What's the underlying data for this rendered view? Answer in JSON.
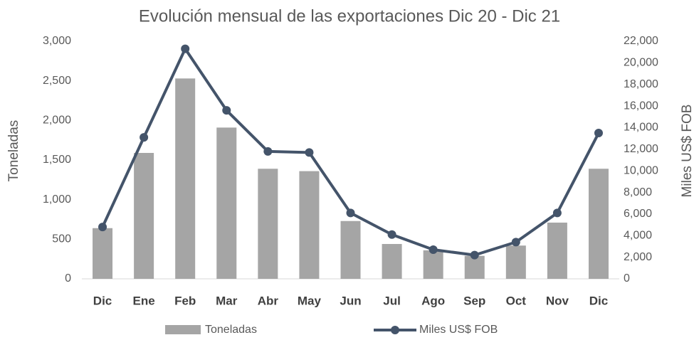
{
  "chart_data": {
    "type": "bar_line",
    "title": "Evolución mensual de las exportaciones Dic 20 - Dic 21",
    "y_label": "Toneladas",
    "y2_label": "Miles US$ FOB",
    "categories": [
      "Dic",
      "Ene",
      "Feb",
      "Mar",
      "Abr",
      "May",
      "Jun",
      "Jul",
      "Ago",
      "Sep",
      "Oct",
      "Nov",
      "Dic"
    ],
    "series": [
      {
        "name": "Toneladas",
        "type": "bar",
        "color": "#a5a5a5",
        "values": [
          640,
          1590,
          2530,
          1910,
          1390,
          1360,
          730,
          440,
          360,
          290,
          420,
          710,
          1390
        ]
      },
      {
        "name": "Miles US$ FOB",
        "type": "line",
        "axis": "y2",
        "color": "#44546a",
        "values": [
          4800,
          13100,
          21300,
          15600,
          11800,
          11700,
          6100,
          4100,
          2700,
          2200,
          3400,
          6100,
          13500
        ]
      }
    ],
    "ylim": [
      0,
      3000
    ],
    "yticks": [
      0,
      500,
      {
        "value": 1000,
        "label": "1,000"
      },
      {
        "value": 1500,
        "label": "1,500"
      },
      {
        "value": 2000,
        "label": "2,000"
      },
      {
        "value": 2500,
        "label": "2,500"
      },
      {
        "value": 3000,
        "label": "3,000"
      }
    ],
    "y2lim": [
      0,
      22000
    ],
    "y2ticks": [
      0,
      {
        "value": 2000,
        "label": "2,000"
      },
      {
        "value": 4000,
        "label": "4,000"
      },
      {
        "value": 6000,
        "label": "6,000"
      },
      {
        "value": 8000,
        "label": "8,000"
      },
      {
        "value": 10000,
        "label": "10,000"
      },
      {
        "value": 12000,
        "label": "12,000"
      },
      {
        "value": 14000,
        "label": "14,000"
      },
      {
        "value": 16000,
        "label": "16,000"
      },
      {
        "value": 18000,
        "label": "18,000"
      },
      {
        "value": 20000,
        "label": "20,000"
      },
      {
        "value": 22000,
        "label": "22,000"
      }
    ],
    "grid": false
  }
}
